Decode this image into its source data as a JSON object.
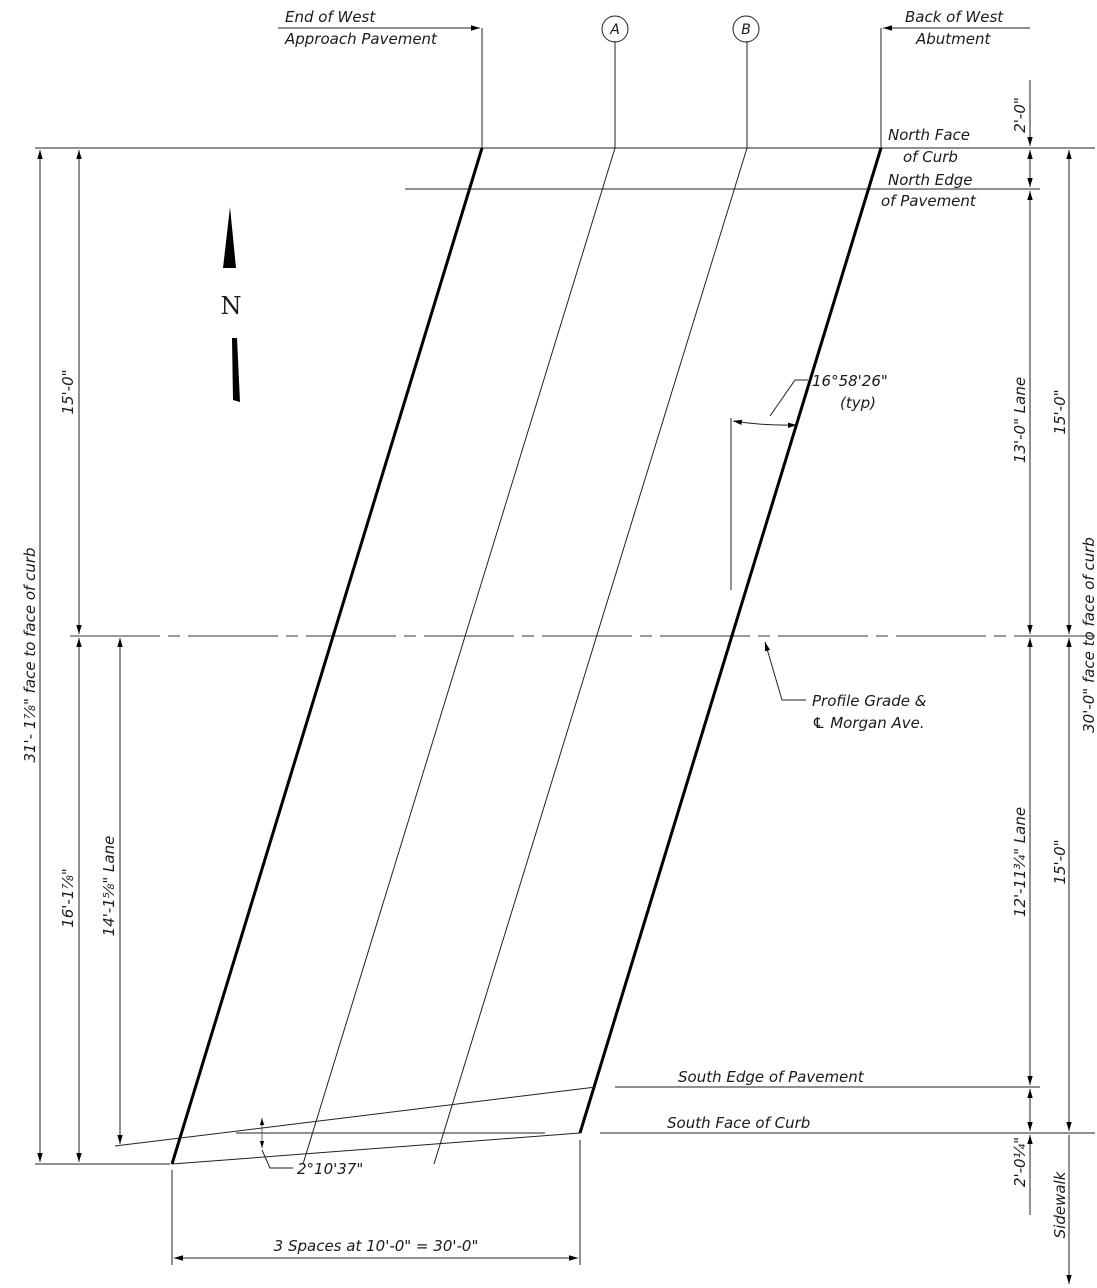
{
  "labels": {
    "end_west_1": "End of West",
    "end_west_2": "Approach Pavement",
    "back_west_1": "Back of West",
    "back_west_2": "Abutment",
    "bubble_a": "A",
    "bubble_b": "B",
    "north_face_1": "North Face",
    "north_face_2": "of Curb",
    "north_edge_1": "North Edge",
    "north_edge_2": "of Pavement",
    "skew_angle": "16°58'26\"",
    "skew_typ": "(typ)",
    "profile_1": "Profile Grade &",
    "profile_2": "℄ Morgan Ave.",
    "south_edge": "South Edge of Pavement",
    "south_face": "South Face of Curb",
    "cross_angle": "2°10'37\"",
    "spaces": "3 Spaces at 10'-0\" = 30'-0\"",
    "north_arrow": "N"
  },
  "dimensions": {
    "left_overall": "31'- 1⅞\" face to face of curb",
    "left_15": "15'-0\"",
    "left_16": "16'-1⅞\"",
    "left_lane": "14'-1⅝\" Lane",
    "right_2": "2'-0\"",
    "right_13_lane": "13'-0\" Lane",
    "right_15_top": "15'-0\"",
    "right_15_bot": "15'-0\"",
    "right_12_lane": "12'-11¾\" Lane",
    "right_overall": "30'-0\" face to face of curb",
    "right_201": "2'-0¼\"",
    "sidewalk": "Sidewalk"
  }
}
